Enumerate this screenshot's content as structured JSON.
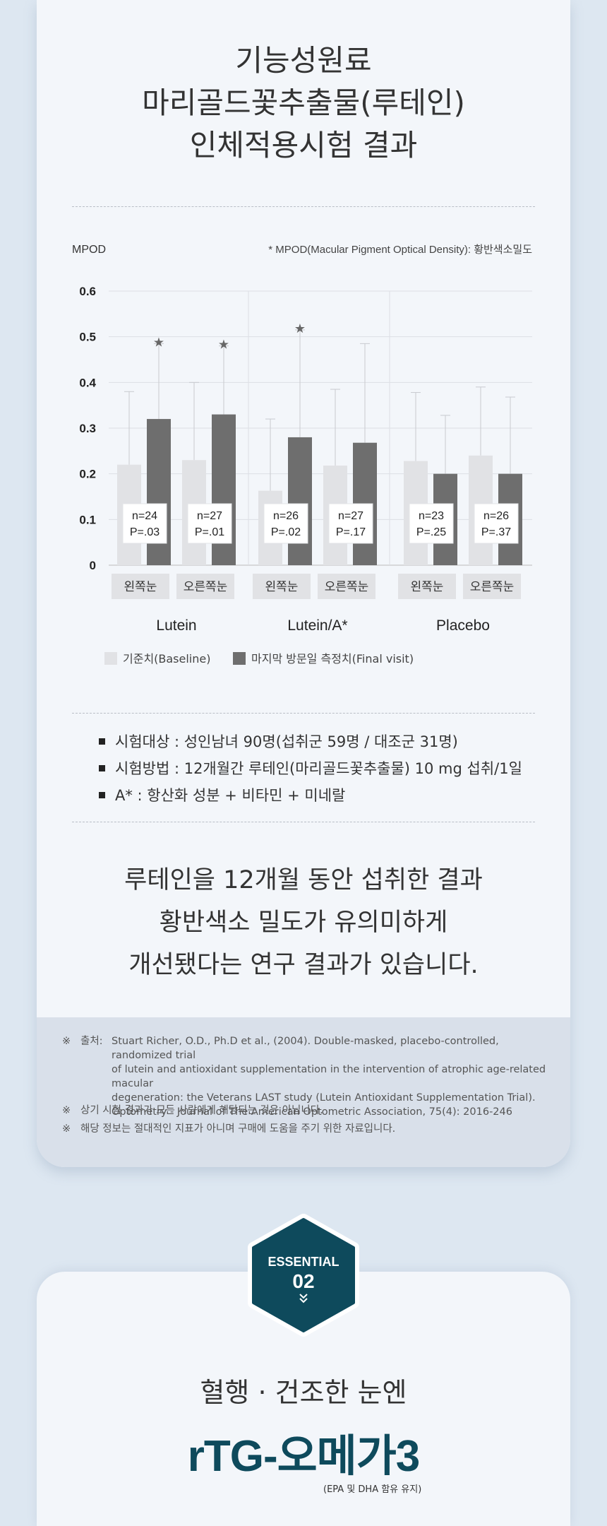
{
  "title_lines": [
    "기능성원료",
    "마리골드꽃추출물(루테인)",
    "인체적용시험 결과"
  ],
  "chart_data": {
    "type": "bar",
    "ylabel": "MPOD",
    "footnote": "* MPOD(Macular Pigment Optical Density): 황반색소밀도",
    "ylim": [
      0,
      0.6
    ],
    "yticks": [
      "0.6",
      "0.5",
      "0.4",
      "0.3",
      "0.2",
      "0.1",
      "0"
    ],
    "grid": true,
    "groups": [
      {
        "name": "Lutein",
        "pairs": [
          {
            "label": "왼쪽눈",
            "baseline": 0.22,
            "final": 0.32,
            "baseline_err": 0.38,
            "final_err": 0.485,
            "star": true,
            "n": "n=24",
            "p": "P=.03"
          },
          {
            "label": "오른쪽눈",
            "baseline": 0.23,
            "final": 0.33,
            "baseline_err": 0.4,
            "final_err": 0.48,
            "star": true,
            "n": "n=27",
            "p": "P=.01"
          }
        ]
      },
      {
        "name": "Lutein/A*",
        "pairs": [
          {
            "label": "왼쪽눈",
            "baseline": 0.163,
            "final": 0.28,
            "baseline_err": 0.32,
            "final_err": 0.515,
            "star": true,
            "n": "n=26",
            "p": "P=.02"
          },
          {
            "label": "오른쪽눈",
            "baseline": 0.218,
            "final": 0.268,
            "baseline_err": 0.385,
            "final_err": 0.485,
            "star": false,
            "n": "n=27",
            "p": "P=.17"
          }
        ]
      },
      {
        "name": "Placebo",
        "pairs": [
          {
            "label": "왼쪽눈",
            "baseline": 0.228,
            "final": 0.2,
            "baseline_err": 0.378,
            "final_err": 0.328,
            "star": false,
            "n": "n=23",
            "p": "P=.25"
          },
          {
            "label": "오른쪽눈",
            "baseline": 0.24,
            "final": 0.2,
            "baseline_err": 0.39,
            "final_err": 0.368,
            "star": false,
            "n": "n=26",
            "p": "P=.37"
          }
        ]
      }
    ],
    "series": [
      {
        "name": "기준치(Baseline)",
        "color": "#e1e2e5"
      },
      {
        "name": "마지막 방문일 측정치(Final visit)",
        "color": "#6e6e6e"
      }
    ],
    "star_symbol": "★"
  },
  "bullets": [
    "시험대상 : 성인남녀 90명(섭취군 59명 / 대조군 31명)",
    "시험방법 : 12개월간 루테인(마리골드꽃추출물) 10 mg 섭취/1일",
    "A* : 항산화 성분 + 비타민 + 미네랄"
  ],
  "summary_lines": [
    "루테인을 12개월 동안 섭취한 결과",
    "황반색소 밀도가 유의미하게",
    "개선됐다는 연구 결과가 있습니다."
  ],
  "source": {
    "mark": "※",
    "label": "출처:",
    "lines": [
      "Stuart Richer, O.D., Ph.D et al., (2004). Double-masked, placebo-controlled, randomized trial",
      "of lutein and antioxidant supplementation in the intervention of atrophic age-related macular",
      "degeneration: the Veterans LAST study (Lutein Antioxidant Supplementation Trial).",
      "Optometry - Journal of The American Optometric Association, 75(4): 2016-246"
    ],
    "notes": [
      "상기 시험 결과가 모든 사람에게 해당되는 것은 아닙니다.",
      "해당 정보는 절대적인 지표가 아니며 구매에 도움을 주기 위한 자료입니다."
    ]
  },
  "badge": {
    "label": "ESSENTIAL",
    "number": "02",
    "color": "#0e4a5c"
  },
  "section2": {
    "subtitle": "혈행 · 건조한 눈엔",
    "title": "rTG-오메가3",
    "note": "(EPA 및 DHA 함유 유지)"
  }
}
